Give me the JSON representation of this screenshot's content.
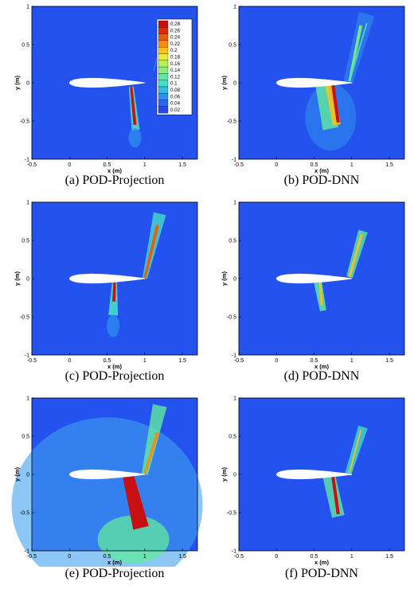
{
  "figure": {
    "x_axis_label": "x (m)",
    "y_axis_label": "y (m)",
    "x_ticks": [
      "-0.5",
      "0",
      "0.5",
      "1",
      "1.5"
    ],
    "y_ticks": [
      "-1",
      "-0.5",
      "0",
      "0.5",
      "1"
    ],
    "xlim": [
      -0.5,
      1.7
    ],
    "ylim": [
      -1,
      1
    ],
    "panels": [
      {
        "caption": "(a) POD-Projection",
        "method": "POD-Projection"
      },
      {
        "caption": "(b) POD-DNN",
        "method": "POD-DNN"
      },
      {
        "caption": "(c) POD-Projection",
        "method": "POD-Projection"
      },
      {
        "caption": "(d) POD-DNN",
        "method": "POD-DNN"
      },
      {
        "caption": "(e) POD-Projection",
        "method": "POD-Projection"
      },
      {
        "caption": "(f) POD-DNN",
        "method": "POD-DNN"
      }
    ],
    "colorbar": {
      "levels": [
        "0.28",
        "0.26",
        "0.24",
        "0.22",
        "0.2",
        "0.18",
        "0.16",
        "0.14",
        "0.12",
        "0.1",
        "0.08",
        "0.06",
        "0.04",
        "0.02"
      ],
      "colors": [
        "#c81010",
        "#e02a0a",
        "#f05a08",
        "#f88c10",
        "#fbc020",
        "#eaea3c",
        "#b8ee58",
        "#86f078",
        "#60eaa0",
        "#46dcc8",
        "#38b8e8",
        "#3090ee",
        "#2a66ee",
        "#2448ee"
      ]
    },
    "background_color": "#2452ee"
  }
}
